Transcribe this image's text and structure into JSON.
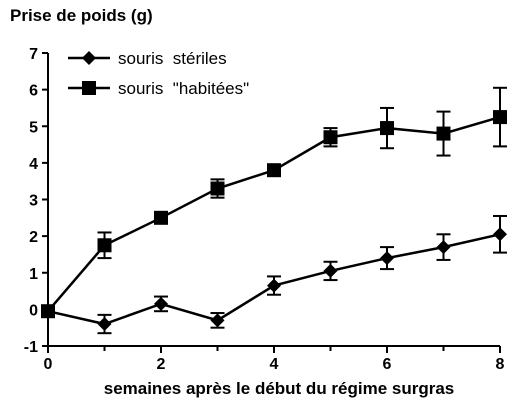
{
  "chart_data": {
    "type": "line",
    "title": "",
    "ylabel": "Prise de poids (g)",
    "xlabel": "semaines après le début du régime surgras",
    "xlim": [
      0,
      8
    ],
    "ylim": [
      -1,
      7
    ],
    "x_ticks": [
      0,
      2,
      4,
      6,
      8
    ],
    "y_ticks": [
      -1,
      0,
      1,
      2,
      3,
      4,
      5,
      6,
      7
    ],
    "grid": false,
    "legend_position": "top-left",
    "series": [
      {
        "name": "souris  stériles",
        "marker": "diamond",
        "color": "#000000",
        "x": [
          0,
          1,
          2,
          3,
          4,
          5,
          6,
          7,
          8
        ],
        "values": [
          -0.05,
          -0.4,
          0.15,
          -0.3,
          0.65,
          1.05,
          1.4,
          1.7,
          2.05
        ],
        "errors": [
          0.1,
          0.25,
          0.2,
          0.2,
          0.25,
          0.25,
          0.3,
          0.35,
          0.5
        ]
      },
      {
        "name": "souris  \"habitées\"",
        "marker": "square",
        "color": "#000000",
        "x": [
          0,
          1,
          2,
          3,
          4,
          5,
          6,
          7,
          8
        ],
        "values": [
          -0.05,
          1.75,
          2.5,
          3.3,
          3.8,
          4.7,
          4.95,
          4.8,
          5.25
        ],
        "errors": [
          0.1,
          0.35,
          0.1,
          0.25,
          0.1,
          0.25,
          0.55,
          0.6,
          0.8
        ]
      }
    ]
  }
}
